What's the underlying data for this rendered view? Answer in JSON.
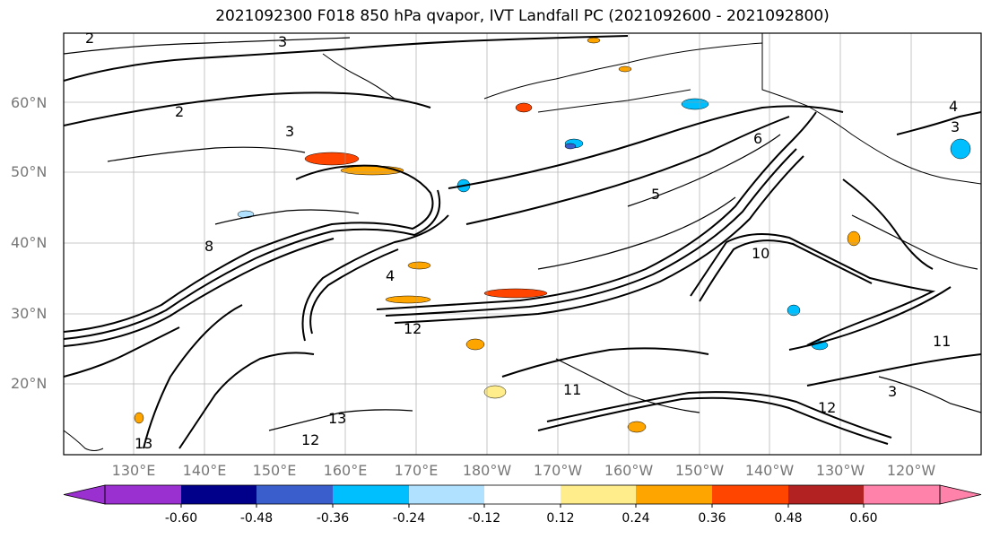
{
  "title": "2021092300 F018 850 hPa qvapor, IVT Landfall PC (2021092600 - 2021092800)",
  "lat_labels": [
    "60°N",
    "50°N",
    "40°N",
    "30°N",
    "20°N"
  ],
  "lon_labels": [
    "130°E",
    "140°E",
    "150°E",
    "160°E",
    "170°E",
    "180°W",
    "170°W",
    "160°W",
    "150°W",
    "140°W",
    "130°W",
    "120°W"
  ],
  "contour_labels": [
    "2",
    "3",
    "2",
    "3",
    "4",
    "5",
    "6",
    "8",
    "10",
    "11",
    "12",
    "13",
    "12",
    "11",
    "3",
    "4",
    "3",
    "12",
    "13"
  ],
  "colorbar": {
    "ticks": [
      "-0.60",
      "-0.48",
      "-0.36",
      "-0.24",
      "-0.12",
      "0.12",
      "0.24",
      "0.36",
      "0.48",
      "0.60"
    ],
    "colors": [
      "#9b30d0",
      "#00008b",
      "#3a5fcd",
      "#00bfff",
      "#b0e2ff",
      "#ffffff",
      "#ffec8b",
      "#ffa500",
      "#ff4500",
      "#b22222",
      "#ff82ab"
    ]
  },
  "fill_colors": {
    "neg_light": "#b0e2ff",
    "neg_mid": "#00bfff",
    "neg_strong": "#3a5fcd",
    "pos_light": "#ffec8b",
    "pos_mid": "#ffa500",
    "pos_strong": "#ff4500"
  }
}
